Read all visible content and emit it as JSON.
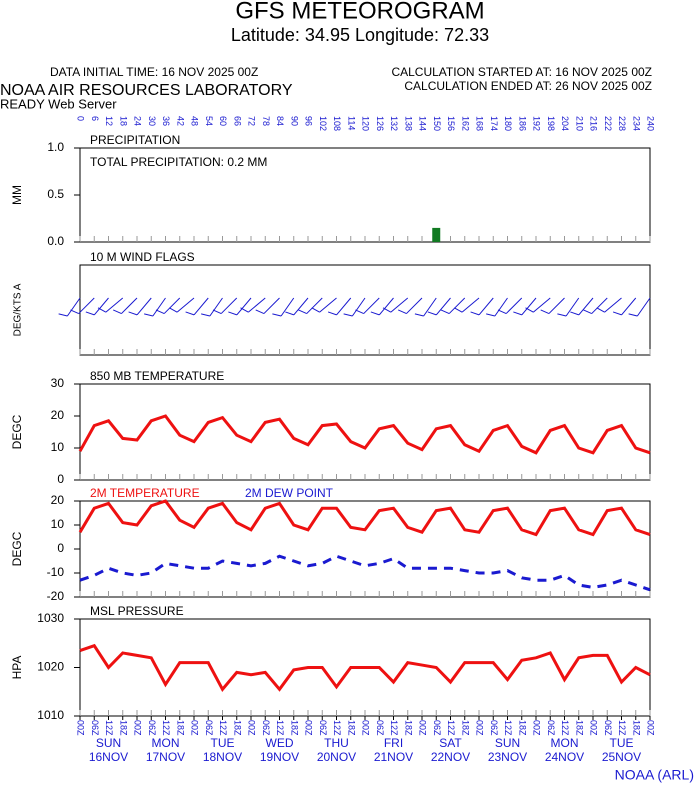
{
  "header": {
    "title": "GFS METEOROGRAM",
    "subtitle": "Latitude: 34.95 Longitude:  72.33",
    "initial": "DATA INITIAL TIME: 16 NOV 2025 00Z",
    "started": "CALCULATION STARTED AT: 16 NOV 2025 00Z",
    "ended": "CALCULATION ENDED AT: 26 NOV 2025 00Z",
    "lab": "NOAA AIR RESOURCES LABORATORY",
    "server": "READY Web Server",
    "footer": "NOAA (ARL)"
  },
  "chart_data": [
    {
      "type": "bar",
      "title": "PRECIPITATION",
      "ylabel": "MM",
      "annotation": "TOTAL PRECIPITATION:  0.2 MM",
      "xlim": [
        0,
        240
      ],
      "x": [
        150
      ],
      "values": [
        0.15
      ],
      "color": "#117a22",
      "ylim": [
        0,
        1
      ],
      "yticks": [
        {
          "value": 0,
          "label": "0.0"
        },
        {
          "value": 0.5,
          "label": "0.5"
        },
        {
          "value": 1,
          "label": "1.0"
        }
      ],
      "xticks": [
        0,
        6,
        12,
        18,
        24,
        30,
        36,
        42,
        48,
        54,
        60,
        66,
        72,
        78,
        84,
        90,
        96,
        102,
        108,
        114,
        120,
        126,
        132,
        138,
        144,
        150,
        156,
        162,
        168,
        174,
        180,
        186,
        192,
        198,
        204,
        210,
        216,
        222,
        228,
        234,
        240
      ]
    },
    {
      "type": "barbs",
      "title": "10 M  WIND FLAGS",
      "ylabel": "DEG/KTS  A",
      "xlim": [
        0,
        240
      ],
      "color": "#1a1ad0",
      "x": [
        0,
        6,
        12,
        18,
        24,
        30,
        36,
        42,
        48,
        54,
        60,
        66,
        72,
        78,
        84,
        90,
        96,
        102,
        108,
        114,
        120,
        126,
        132,
        138,
        144,
        150,
        156,
        162,
        168,
        174,
        180,
        186,
        192,
        198,
        204,
        210,
        216,
        222,
        228,
        234,
        240
      ],
      "values": [
        215,
        225,
        220,
        230,
        225,
        220,
        215,
        225,
        230,
        220,
        215,
        225,
        220,
        230,
        225,
        215,
        220,
        225,
        230,
        220,
        215,
        225,
        220,
        230,
        225,
        215,
        220,
        225,
        230,
        220,
        215,
        225,
        220,
        230,
        225,
        215,
        220,
        225,
        230,
        220,
        215
      ]
    },
    {
      "type": "line",
      "title": "850 MB  TEMPERATURE",
      "ylabel": "DEGC",
      "xlim": [
        0,
        240
      ],
      "color": "#ee1111",
      "ylim": [
        0,
        30
      ],
      "yticks": [
        0,
        10,
        20,
        30
      ],
      "x": [
        0,
        6,
        12,
        18,
        24,
        30,
        36,
        42,
        48,
        54,
        60,
        66,
        72,
        78,
        84,
        90,
        96,
        102,
        108,
        114,
        120,
        126,
        132,
        138,
        144,
        150,
        156,
        162,
        168,
        174,
        180,
        186,
        192,
        198,
        204,
        210,
        216,
        222,
        228,
        234,
        240
      ],
      "values": [
        9,
        17,
        18.5,
        13,
        12.5,
        18.5,
        20,
        14,
        12,
        18,
        19.5,
        14,
        12,
        18,
        19,
        13,
        11,
        17,
        17.5,
        12,
        10,
        16,
        17,
        11.5,
        9.5,
        16,
        17,
        11,
        9,
        15.5,
        17,
        10.5,
        8.5,
        15.5,
        17,
        10,
        8.5,
        15.5,
        17,
        10,
        8.5
      ]
    },
    {
      "type": "line",
      "ylabel": "DEGC",
      "xlim": [
        0,
        240
      ],
      "ylim": [
        -20,
        20
      ],
      "yticks": [
        -20,
        -10,
        0,
        10,
        20
      ],
      "x": [
        0,
        6,
        12,
        18,
        24,
        30,
        36,
        42,
        48,
        54,
        60,
        66,
        72,
        78,
        84,
        90,
        96,
        102,
        108,
        114,
        120,
        126,
        132,
        138,
        144,
        150,
        156,
        162,
        168,
        174,
        180,
        186,
        192,
        198,
        204,
        210,
        216,
        222,
        228,
        234,
        240
      ],
      "series": [
        {
          "name": "2M TEMPERATURE",
          "color": "#ee1111",
          "style": "solid",
          "values": [
            7,
            17,
            19,
            11,
            10,
            18,
            20,
            12,
            9,
            17,
            19,
            11,
            8,
            17,
            19,
            10,
            8,
            17,
            17,
            9,
            8,
            16,
            17,
            9,
            7,
            16,
            17,
            8,
            7,
            16,
            17,
            8,
            6,
            16,
            17,
            8,
            6,
            16,
            17,
            8,
            6
          ]
        },
        {
          "name": "2M   DEW POINT",
          "color": "#1a1ad0",
          "style": "dashed",
          "values": [
            -13,
            -11,
            -8,
            -10,
            -11,
            -10,
            -6,
            -7,
            -8,
            -8,
            -5,
            -6,
            -7,
            -6,
            -3,
            -5,
            -7,
            -6,
            -3,
            -5,
            -7,
            -6,
            -4,
            -8,
            -8,
            -8,
            -8,
            -9,
            -10,
            -10,
            -9,
            -12,
            -13,
            -13,
            -11,
            -15,
            -16,
            -15,
            -13,
            -15,
            -17
          ]
        }
      ]
    },
    {
      "type": "line",
      "title": "MSL PRESSURE",
      "ylabel": "HPA",
      "xlim": [
        0,
        240
      ],
      "color": "#ee1111",
      "ylim": [
        1010,
        1030
      ],
      "yticks": [
        1010,
        1020,
        1030
      ],
      "x": [
        0,
        6,
        12,
        18,
        24,
        30,
        36,
        42,
        48,
        54,
        60,
        66,
        72,
        78,
        84,
        90,
        96,
        102,
        108,
        114,
        120,
        126,
        132,
        138,
        144,
        150,
        156,
        162,
        168,
        174,
        180,
        186,
        192,
        198,
        204,
        210,
        216,
        222,
        228,
        234,
        240
      ],
      "values": [
        1023.5,
        1024.5,
        1020,
        1023,
        1022.5,
        1022,
        1016.5,
        1021,
        1021,
        1021,
        1015.5,
        1019,
        1018.5,
        1019,
        1015.5,
        1019.5,
        1020,
        1020,
        1016,
        1020,
        1020,
        1020,
        1017,
        1021,
        1020.5,
        1020,
        1017,
        1021,
        1021,
        1021,
        1017.5,
        1021.5,
        1022,
        1023,
        1017.5,
        1022,
        1022.5,
        1022.5,
        1017,
        1020,
        1018.5
      ],
      "xticks": [
        {
          "value": 0,
          "label": "00Z"
        },
        {
          "value": 6,
          "label": "06Z"
        },
        {
          "value": 12,
          "label": "12Z"
        },
        {
          "value": 18,
          "label": "18Z"
        },
        {
          "value": 24,
          "label": "00Z"
        },
        {
          "value": 30,
          "label": "06Z"
        },
        {
          "value": 36,
          "label": "12Z"
        },
        {
          "value": 42,
          "label": "18Z"
        },
        {
          "value": 48,
          "label": "00Z"
        },
        {
          "value": 54,
          "label": "06Z"
        },
        {
          "value": 60,
          "label": "12Z"
        },
        {
          "value": 66,
          "label": "18Z"
        },
        {
          "value": 72,
          "label": "00Z"
        },
        {
          "value": 78,
          "label": "06Z"
        },
        {
          "value": 84,
          "label": "12Z"
        },
        {
          "value": 90,
          "label": "18Z"
        },
        {
          "value": 96,
          "label": "00Z"
        },
        {
          "value": 102,
          "label": "06Z"
        },
        {
          "value": 108,
          "label": "12Z"
        },
        {
          "value": 114,
          "label": "18Z"
        },
        {
          "value": 120,
          "label": "00Z"
        },
        {
          "value": 126,
          "label": "06Z"
        },
        {
          "value": 132,
          "label": "12Z"
        },
        {
          "value": 138,
          "label": "18Z"
        },
        {
          "value": 144,
          "label": "00Z"
        },
        {
          "value": 150,
          "label": "06Z"
        },
        {
          "value": 156,
          "label": "12Z"
        },
        {
          "value": 162,
          "label": "18Z"
        },
        {
          "value": 168,
          "label": "00Z"
        },
        {
          "value": 174,
          "label": "06Z"
        },
        {
          "value": 180,
          "label": "12Z"
        },
        {
          "value": 186,
          "label": "18Z"
        },
        {
          "value": 192,
          "label": "00Z"
        },
        {
          "value": 198,
          "label": "06Z"
        },
        {
          "value": 204,
          "label": "12Z"
        },
        {
          "value": 210,
          "label": "18Z"
        },
        {
          "value": 216,
          "label": "00Z"
        },
        {
          "value": 222,
          "label": "06Z"
        },
        {
          "value": 228,
          "label": "12Z"
        },
        {
          "value": 234,
          "label": "18Z"
        },
        {
          "value": 240,
          "label": "00Z"
        }
      ],
      "days": [
        {
          "value": 12,
          "label": "SUN",
          "date": "16NOV"
        },
        {
          "value": 36,
          "label": "MON",
          "date": "17NOV"
        },
        {
          "value": 60,
          "label": "TUE",
          "date": "18NOV"
        },
        {
          "value": 84,
          "label": "WED",
          "date": "19NOV"
        },
        {
          "value": 108,
          "label": "THU",
          "date": "20NOV"
        },
        {
          "value": 132,
          "label": "FRI",
          "date": "21NOV"
        },
        {
          "value": 156,
          "label": "SAT",
          "date": "22NOV"
        },
        {
          "value": 180,
          "label": "SUN",
          "date": "23NOV"
        },
        {
          "value": 204,
          "label": "MON",
          "date": "24NOV"
        },
        {
          "value": 228,
          "label": "TUE",
          "date": "25NOV"
        }
      ]
    }
  ]
}
